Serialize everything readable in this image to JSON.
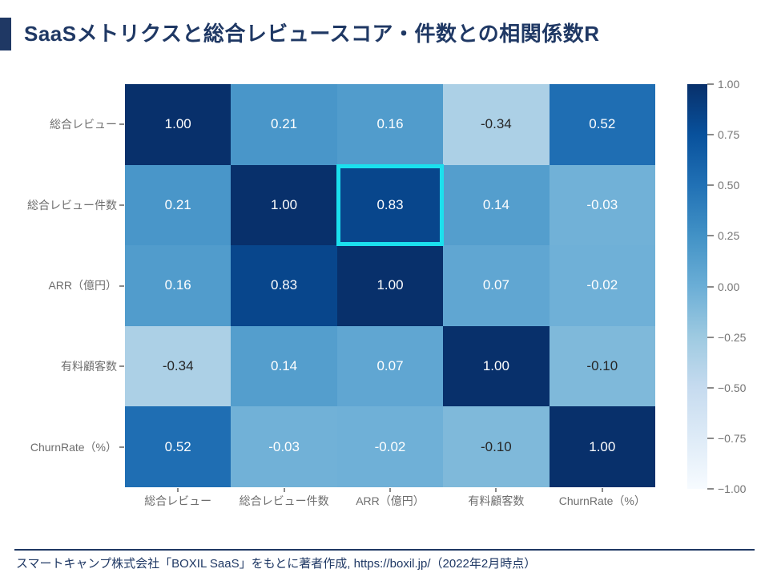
{
  "header": {
    "title": "SaaSメトリクスと総合レビュースコア・件数との相関係数R"
  },
  "colors": {
    "background": "#FFFFFF",
    "accent": "#1F3864",
    "label_gray": "#6E6E6E",
    "tick_gray": "#757575",
    "annotation_dark": "#262626",
    "annotation_light": "#FFFFFF",
    "highlight": "#1BE0EE"
  },
  "chart_data": {
    "type": "heatmap",
    "title": "SaaSメトリクスと総合レビュースコア・件数との相関係数R",
    "categories": [
      "総合レビュー",
      "総合レビュー件数",
      "ARR（億円）",
      "有料顧客数",
      "ChurnRate（%）"
    ],
    "matrix": [
      [
        1.0,
        0.21,
        0.16,
        -0.34,
        0.52
      ],
      [
        0.21,
        1.0,
        0.83,
        0.14,
        -0.03
      ],
      [
        0.16,
        0.83,
        1.0,
        0.07,
        -0.02
      ],
      [
        -0.34,
        0.14,
        0.07,
        1.0,
        -0.1
      ],
      [
        0.52,
        -0.03,
        -0.02,
        -0.1,
        1.0
      ]
    ],
    "value_range": [
      -1,
      1
    ],
    "annotation_decimals": 2,
    "colormap": {
      "name": "Blues",
      "stops": [
        "#f7fbff",
        "#deebf7",
        "#c6dbef",
        "#9ecae1",
        "#6baed6",
        "#4292c6",
        "#2171b5",
        "#08519c",
        "#08306b"
      ]
    },
    "highlight_cell": {
      "row": 1,
      "col": 2,
      "row_label": "総合レビュー件数",
      "col_label": "ARR（億円）",
      "value": 0.83
    },
    "colorbar": {
      "position": "right",
      "tick_labels": [
        "1.00",
        "0.75",
        "0.50",
        "0.25",
        "0.00",
        "−0.25",
        "−0.50",
        "−0.75",
        "−1.00"
      ]
    }
  },
  "footer": {
    "source": "スマートキャンプ株式会社「BOXIL SaaS」をもとに著者作成, https://boxil.jp/（2022年2月時点）"
  }
}
